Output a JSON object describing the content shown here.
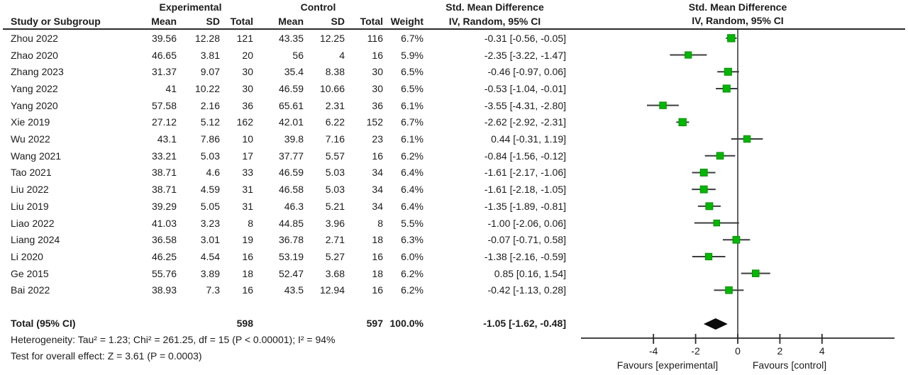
{
  "header": {
    "experimental": "Experimental",
    "control": "Control",
    "smd": "Std. Mean Difference",
    "study": "Study or Subgroup",
    "mean": "Mean",
    "sd": "SD",
    "total": "Total",
    "weight": "Weight",
    "iv_random": "IV, Random, 95% CI"
  },
  "plot": {
    "title": "Std. Mean Difference",
    "subtitle": "IV, Random, 95% CI"
  },
  "footer": {
    "heterogeneity": "Heterogeneity: Tau² = 1.23; Chi² = 261.25, df = 15 (P < 0.00001); I² = 94%",
    "overall_effect": "Test for overall effect: Z = 3.61 (P = 0.0003)"
  },
  "chart_data": {
    "type": "scatter",
    "subtype": "forest-plot",
    "title": "Std. Mean Difference",
    "xlabel": "IV, Random, 95% CI",
    "x_ticks": [
      -4,
      -2,
      0,
      2,
      4
    ],
    "xlim": [
      -7.4,
      7.4
    ],
    "favours": [
      "Favours [experimental]",
      "Favours [control]"
    ],
    "marker_color": "#00b800",
    "studies": [
      {
        "name": "Zhou 2022",
        "mean_exp": "39.56",
        "sd_exp": "12.28",
        "n_exp": "121",
        "mean_ctl": "43.35",
        "sd_ctl": "12.25",
        "n_ctl": "116",
        "weight": "6.7%",
        "ci_text": "-0.31 [-0.56, -0.05]",
        "est": -0.31,
        "lo": -0.56,
        "hi": -0.05
      },
      {
        "name": "Zhao 2020",
        "mean_exp": "46.65",
        "sd_exp": "3.81",
        "n_exp": "20",
        "mean_ctl": "56",
        "sd_ctl": "4",
        "n_ctl": "16",
        "weight": "5.9%",
        "ci_text": "-2.35 [-3.22, -1.47]",
        "est": -2.35,
        "lo": -3.22,
        "hi": -1.47
      },
      {
        "name": "Zhang 2023",
        "mean_exp": "31.37",
        "sd_exp": "9.07",
        "n_exp": "30",
        "mean_ctl": "35.4",
        "sd_ctl": "8.38",
        "n_ctl": "30",
        "weight": "6.5%",
        "ci_text": "-0.46 [-0.97, 0.06]",
        "est": -0.46,
        "lo": -0.97,
        "hi": 0.06
      },
      {
        "name": "Yang 2022",
        "mean_exp": "41",
        "sd_exp": "10.22",
        "n_exp": "30",
        "mean_ctl": "46.59",
        "sd_ctl": "10.66",
        "n_ctl": "30",
        "weight": "6.5%",
        "ci_text": "-0.53 [-1.04, -0.01]",
        "est": -0.53,
        "lo": -1.04,
        "hi": -0.01
      },
      {
        "name": "Yang 2020",
        "mean_exp": "57.58",
        "sd_exp": "2.16",
        "n_exp": "36",
        "mean_ctl": "65.61",
        "sd_ctl": "2.31",
        "n_ctl": "36",
        "weight": "6.1%",
        "ci_text": "-3.55 [-4.31, -2.80]",
        "est": -3.55,
        "lo": -4.31,
        "hi": -2.8
      },
      {
        "name": "Xie 2019",
        "mean_exp": "27.12",
        "sd_exp": "5.12",
        "n_exp": "162",
        "mean_ctl": "42.01",
        "sd_ctl": "6.22",
        "n_ctl": "152",
        "weight": "6.7%",
        "ci_text": "-2.62 [-2.92, -2.31]",
        "est": -2.62,
        "lo": -2.92,
        "hi": -2.31
      },
      {
        "name": "Wu 2022",
        "mean_exp": "43.1",
        "sd_exp": "7.86",
        "n_exp": "10",
        "mean_ctl": "39.8",
        "sd_ctl": "7.16",
        "n_ctl": "23",
        "weight": "6.1%",
        "ci_text": "0.44 [-0.31, 1.19]",
        "est": 0.44,
        "lo": -0.31,
        "hi": 1.19
      },
      {
        "name": "Wang 2021",
        "mean_exp": "33.21",
        "sd_exp": "5.03",
        "n_exp": "17",
        "mean_ctl": "37.77",
        "sd_ctl": "5.57",
        "n_ctl": "16",
        "weight": "6.2%",
        "ci_text": "-0.84 [-1.56, -0.12]",
        "est": -0.84,
        "lo": -1.56,
        "hi": -0.12
      },
      {
        "name": "Tao 2021",
        "mean_exp": "38.71",
        "sd_exp": "4.6",
        "n_exp": "33",
        "mean_ctl": "46.59",
        "sd_ctl": "5.03",
        "n_ctl": "34",
        "weight": "6.4%",
        "ci_text": "-1.61 [-2.17, -1.06]",
        "est": -1.61,
        "lo": -2.17,
        "hi": -1.06
      },
      {
        "name": "Liu 2022",
        "mean_exp": "38.71",
        "sd_exp": "4.59",
        "n_exp": "31",
        "mean_ctl": "46.58",
        "sd_ctl": "5.03",
        "n_ctl": "34",
        "weight": "6.4%",
        "ci_text": "-1.61 [-2.18, -1.05]",
        "est": -1.61,
        "lo": -2.18,
        "hi": -1.05
      },
      {
        "name": "Liu 2019",
        "mean_exp": "39.29",
        "sd_exp": "5.05",
        "n_exp": "31",
        "mean_ctl": "46.3",
        "sd_ctl": "5.21",
        "n_ctl": "34",
        "weight": "6.4%",
        "ci_text": "-1.35 [-1.89, -0.81]",
        "est": -1.35,
        "lo": -1.89,
        "hi": -0.81
      },
      {
        "name": "Liao 2022",
        "mean_exp": "41.03",
        "sd_exp": "3.23",
        "n_exp": "8",
        "mean_ctl": "44.85",
        "sd_ctl": "3.96",
        "n_ctl": "8",
        "weight": "5.5%",
        "ci_text": "-1.00 [-2.06, 0.06]",
        "est": -1.0,
        "lo": -2.06,
        "hi": 0.06
      },
      {
        "name": "Liang 2024",
        "mean_exp": "36.58",
        "sd_exp": "3.01",
        "n_exp": "19",
        "mean_ctl": "36.78",
        "sd_ctl": "2.71",
        "n_ctl": "18",
        "weight": "6.3%",
        "ci_text": "-0.07 [-0.71, 0.58]",
        "est": -0.07,
        "lo": -0.71,
        "hi": 0.58
      },
      {
        "name": "Li 2020",
        "mean_exp": "46.25",
        "sd_exp": "4.54",
        "n_exp": "16",
        "mean_ctl": "53.19",
        "sd_ctl": "5.27",
        "n_ctl": "16",
        "weight": "6.0%",
        "ci_text": "-1.38 [-2.16, -0.59]",
        "est": -1.38,
        "lo": -2.16,
        "hi": -0.59
      },
      {
        "name": "Ge 2015",
        "mean_exp": "55.76",
        "sd_exp": "3.89",
        "n_exp": "18",
        "mean_ctl": "52.47",
        "sd_ctl": "3.68",
        "n_ctl": "18",
        "weight": "6.2%",
        "ci_text": "0.85 [0.16, 1.54]",
        "est": 0.85,
        "lo": 0.16,
        "hi": 1.54
      },
      {
        "name": "Bai 2022",
        "mean_exp": "38.93",
        "sd_exp": "7.3",
        "n_exp": "16",
        "mean_ctl": "43.5",
        "sd_ctl": "12.94",
        "n_ctl": "16",
        "weight": "6.2%",
        "ci_text": "-0.42 [-1.13, 0.28]",
        "est": -0.42,
        "lo": -1.13,
        "hi": 0.28
      }
    ],
    "total": {
      "label": "Total (95% CI)",
      "n_exp": "598",
      "n_ctl": "597",
      "weight": "100.0%",
      "ci_text": "-1.05 [-1.62, -0.48]",
      "est": -1.05,
      "lo": -1.62,
      "hi": -0.48
    }
  }
}
